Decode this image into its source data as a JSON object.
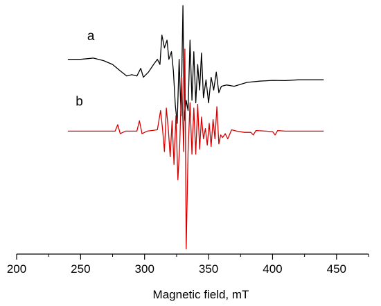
{
  "chart_data": {
    "type": "line",
    "title": "",
    "xlabel": "Magnetic field, mT",
    "ylabel": "",
    "xlim": [
      200,
      475
    ],
    "ylim": [
      -4.8,
      4.9
    ],
    "xticks": [
      200,
      250,
      300,
      350,
      400,
      450
    ],
    "xtick_labels": [
      "200",
      "250",
      "300",
      "350",
      "400",
      "450"
    ],
    "grid": false,
    "legend": "none",
    "series": [
      {
        "name": "a",
        "color": "#000000",
        "x": [
          240,
          250,
          260,
          268,
          275,
          281,
          286,
          290,
          294,
          297,
          299,
          303,
          307,
          310,
          312,
          313.5,
          315.5,
          317.5,
          319,
          321,
          322.5,
          324,
          325.5,
          327,
          328.5,
          330,
          331,
          332.5,
          334,
          335.5,
          337,
          338.5,
          340,
          341.5,
          343,
          344.5,
          346,
          348,
          350,
          352,
          354,
          356,
          358,
          360,
          364,
          370,
          380,
          390,
          400,
          410,
          420,
          430,
          440
        ],
        "y": [
          2.8,
          2.8,
          2.85,
          2.75,
          2.6,
          2.35,
          2.15,
          2.2,
          2.15,
          2.45,
          2.1,
          2.3,
          2.6,
          2.8,
          2.6,
          3.75,
          3.25,
          3.55,
          2.8,
          3.1,
          2.35,
          1.0,
          0.3,
          2.8,
          0.6,
          4.9,
          0.4,
          1.2,
          0.8,
          3.55,
          1.2,
          3.1,
          1.1,
          2.6,
          1.6,
          3.05,
          1.3,
          2.0,
          1.1,
          2.1,
          1.6,
          2.3,
          1.5,
          1.75,
          1.8,
          1.75,
          1.9,
          1.95,
          1.98,
          1.97,
          2.0,
          2.0,
          2.0
        ]
      },
      {
        "name": "b",
        "color": "#d40000",
        "x": [
          240,
          270,
          277,
          279,
          281,
          285,
          294,
          296,
          298,
          302,
          310,
          312.5,
          314,
          315.5,
          317,
          318.5,
          320,
          321.5,
          323,
          324.5,
          326,
          327.5,
          329,
          330.5,
          331.5,
          332.5,
          334,
          335.5,
          337,
          338.5,
          340,
          341.5,
          343,
          344.5,
          346,
          347.5,
          349,
          350.5,
          352,
          353.5,
          355,
          356.5,
          358,
          359.5,
          361,
          363,
          365,
          368,
          372,
          378,
          383,
          385,
          387,
          395,
          400,
          402,
          404,
          410,
          440
        ],
        "y": [
          0,
          0,
          0,
          0.25,
          -0.1,
          0,
          0,
          0.4,
          -0.1,
          0,
          0.05,
          0.8,
          0.1,
          -0.8,
          0.9,
          0.1,
          -1.0,
          0.4,
          -1.3,
          0.6,
          -1.9,
          -0.5,
          2.1,
          -0.8,
          3.2,
          -4.6,
          -0.8,
          1.1,
          -0.9,
          0.9,
          -0.9,
          1.05,
          -0.7,
          0.55,
          -0.3,
          0.1,
          -0.55,
          0.3,
          -0.6,
          0.45,
          -0.3,
          0.95,
          -0.5,
          -0.15,
          -0.25,
          -0.1,
          -0.3,
          0.05,
          0,
          -0.05,
          -0.05,
          -0.15,
          0.02,
          0,
          -0.02,
          -0.15,
          0.02,
          0,
          0
        ]
      }
    ],
    "annotations": [
      {
        "text": "a",
        "x": 258,
        "y": 3.55
      },
      {
        "text": "b",
        "x": 249,
        "y": 1.0
      }
    ]
  }
}
